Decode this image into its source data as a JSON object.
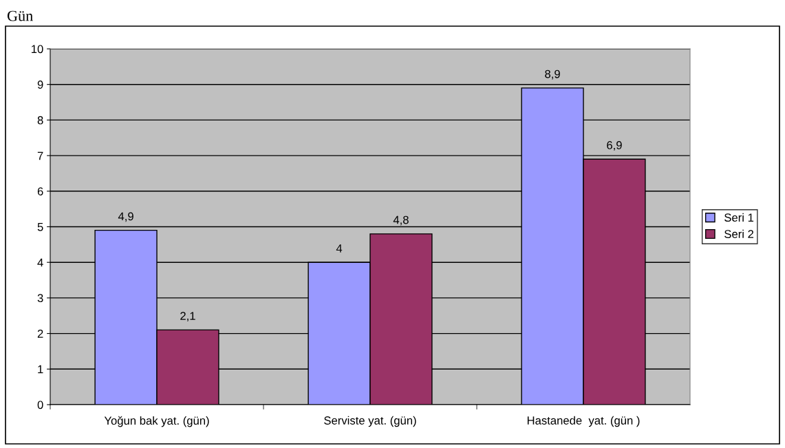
{
  "chart_data": {
    "type": "bar",
    "ylabel": "Gün",
    "categories": [
      "Yoğun bak yat. (gün)",
      "Serviste yat. (gün)",
      "Hastanede  yat. (gün )"
    ],
    "series": [
      {
        "name": "Seri 1",
        "color": "#9999ff",
        "values": [
          4.9,
          4,
          8.9
        ],
        "value_labels": [
          "4,9",
          "4",
          "8,9"
        ]
      },
      {
        "name": "Seri 2",
        "color": "#993366",
        "values": [
          2.1,
          4.8,
          6.9
        ],
        "value_labels": [
          "2,1",
          "4,8",
          "6,9"
        ]
      }
    ],
    "ylim": [
      0,
      10
    ],
    "yticks": [
      0,
      1,
      2,
      3,
      4,
      5,
      6,
      7,
      8,
      9,
      10
    ],
    "grid": "y",
    "legend": "right"
  }
}
